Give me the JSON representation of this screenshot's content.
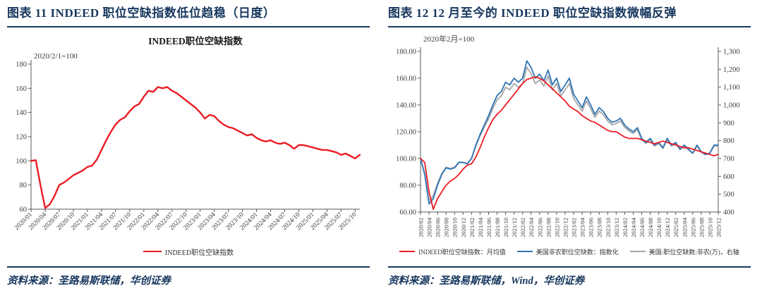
{
  "panels": [
    {
      "header": "图表 11  INDEED 职位空缺指数低位趋稳（日度）",
      "source": "资料来源：圣路易斯联储，华创证券"
    },
    {
      "header": "图表 12  12 月至今的 INDEED 职位空缺指数微幅反弹",
      "source": "资料来源：圣路易斯联储，Wind，华创证券"
    }
  ],
  "colors": {
    "navy": "#17375E",
    "red": "#EC1C24",
    "blue": "#2E75B6",
    "gray": "#A6A6A6",
    "axis": "#595959",
    "text": "#404040",
    "title": "#1a1a1a"
  },
  "chart_data": [
    {
      "type": "line",
      "title": "INDEED职位空缺指数",
      "annotation": "2020/2/1=100",
      "grid": false,
      "legend_position": "bottom",
      "ylim": [
        60,
        180
      ],
      "yticks": [
        "60",
        "80",
        "100",
        "120",
        "140",
        "160",
        "180"
      ],
      "x_tick_every": 3,
      "x_label_rotate": 45,
      "x": [
        "2020/01",
        "2020/02",
        "2020/03",
        "2020/04",
        "2020/05",
        "2020/06",
        "2020/07",
        "2020/08",
        "2020/09",
        "2020/10",
        "2020/11",
        "2020/12",
        "2021/01",
        "2021/02",
        "2021/03",
        "2021/04",
        "2021/05",
        "2021/06",
        "2021/07",
        "2021/08",
        "2021/09",
        "2021/10",
        "2021/11",
        "2021/12",
        "2022/01",
        "2022/02",
        "2022/03",
        "2022/04",
        "2022/05",
        "2022/06",
        "2022/07",
        "2022/08",
        "2022/09",
        "2022/10",
        "2022/11",
        "2022/12",
        "2023/01",
        "2023/02",
        "2023/03",
        "2023/04",
        "2023/05",
        "2023/06",
        "2023/07",
        "2023/08",
        "2023/09",
        "2023/10",
        "2023/11",
        "2023/12",
        "2024/01",
        "2024/02",
        "2024/03",
        "2024/04",
        "2024/05",
        "2024/06",
        "2024/07",
        "2024/08",
        "2024/09",
        "2024/10",
        "2024/11",
        "2024/12",
        "2025/01",
        "2025/02",
        "2025/03",
        "2025/04",
        "2025/05",
        "2025/06",
        "2025/07",
        "2025/08",
        "2025/09",
        "2025/10",
        "2025/11"
      ],
      "series": [
        {
          "name": "INDEED职位空缺指数",
          "color": "red",
          "axis": "left",
          "width": 2.4,
          "values": [
            100,
            100.5,
            80,
            61,
            64,
            71,
            80,
            82,
            85,
            88,
            90,
            92,
            95,
            96,
            101,
            109,
            117,
            124,
            130,
            134,
            136,
            141,
            145,
            147,
            153,
            158,
            157,
            161,
            160,
            161,
            158,
            156,
            153,
            150,
            147,
            144,
            140,
            135,
            138,
            137,
            133,
            130,
            128,
            127,
            125,
            123,
            121,
            122,
            119,
            117,
            116,
            117,
            115,
            114,
            115,
            113,
            110,
            113,
            113,
            112,
            111,
            110,
            109,
            109,
            108,
            107,
            105,
            106,
            104,
            102,
            105
          ]
        }
      ]
    },
    {
      "type": "line",
      "title": "",
      "annotation": "2020年2月=100",
      "grid": false,
      "legend_position": "bottom",
      "ylim": [
        60,
        180
      ],
      "yticks": [
        "60.00",
        "80.00",
        "100.00",
        "120.00",
        "140.00",
        "160.00",
        "180.00"
      ],
      "ylim_right": [
        400,
        1300
      ],
      "yticks_right": [
        "400",
        "500",
        "600",
        "700",
        "800",
        "900",
        "1,000",
        "1,100",
        "1,200",
        "1,300"
      ],
      "x_tick_every": 2,
      "x_label_rotate": 90,
      "x": [
        "2020/02",
        "2020/03",
        "2020/04",
        "2020/05",
        "2020/06",
        "2020/07",
        "2020/08",
        "2020/09",
        "2020/10",
        "2020/11",
        "2020/12",
        "2021/01",
        "2021/02",
        "2021/03",
        "2021/04",
        "2021/05",
        "2021/06",
        "2021/07",
        "2021/08",
        "2021/09",
        "2021/10",
        "2021/11",
        "2021/12",
        "2022/01",
        "2022/02",
        "2022/03",
        "2022/04",
        "2022/05",
        "2022/06",
        "2022/07",
        "2022/08",
        "2022/09",
        "2022/10",
        "2022/11",
        "2022/12",
        "2023/01",
        "2023/02",
        "2023/03",
        "2023/04",
        "2023/05",
        "2023/06",
        "2023/07",
        "2023/08",
        "2023/09",
        "2023/10",
        "2023/11",
        "2023/12",
        "2024/01",
        "2024/02",
        "2024/03",
        "2024/04",
        "2024/05",
        "2024/06",
        "2024/07",
        "2024/08",
        "2024/09",
        "2024/10",
        "2024/11",
        "2024/12",
        "2025/01",
        "2025/02",
        "2025/03",
        "2025/04",
        "2025/05",
        "2025/06",
        "2025/07",
        "2025/08",
        "2025/09",
        "2025/10",
        "2025/11",
        "2025/12"
      ],
      "series": [
        {
          "name": "INDEED职位空缺指数：月均值",
          "color": "red",
          "axis": "left",
          "width": 1.8,
          "values": [
            100,
            97,
            75,
            62,
            70,
            75,
            80,
            83,
            85,
            88,
            92,
            95,
            96,
            101,
            108,
            116,
            123,
            129,
            133,
            136,
            140,
            144,
            148,
            152,
            156,
            159,
            160,
            161,
            160,
            158,
            155,
            152,
            149,
            146,
            143,
            139,
            137,
            135,
            132,
            130,
            128,
            127,
            125,
            123,
            121,
            120,
            120,
            118,
            116,
            115,
            115,
            115,
            114,
            113,
            112,
            111,
            112,
            113,
            112,
            111,
            110,
            109,
            108,
            108,
            107,
            106,
            105,
            104,
            103,
            102,
            103
          ]
        },
        {
          "name": "美国非农职位空缺数：指数化",
          "color": "blue",
          "axis": "left",
          "width": 1.8,
          "values": [
            100,
            88,
            66,
            70,
            80,
            88,
            93,
            92,
            93,
            97,
            97,
            96,
            100,
            110,
            118,
            125,
            132,
            140,
            147,
            150,
            157,
            155,
            160,
            157,
            160,
            173,
            168,
            160,
            163,
            158,
            166,
            155,
            160,
            150,
            155,
            160,
            148,
            143,
            138,
            146,
            140,
            133,
            138,
            135,
            130,
            127,
            128,
            130,
            125,
            122,
            120,
            123,
            115,
            112,
            115,
            110,
            112,
            108,
            115,
            110,
            112,
            107,
            110,
            107,
            104,
            110,
            105,
            103,
            104,
            110,
            110
          ]
        },
        {
          "name": "美国:职位空缺数:非农(万)，右轴",
          "color": "gray",
          "axis": "right",
          "width": 1.8,
          "values": [
            700,
            616,
            462,
            490,
            560,
            616,
            651,
            644,
            651,
            679,
            679,
            672,
            700,
            770,
            826,
            875,
            924,
            980,
            1029,
            1050,
            1099,
            1085,
            1120,
            1099,
            1120,
            1211,
            1176,
            1120,
            1141,
            1106,
            1162,
            1085,
            1120,
            1050,
            1085,
            1120,
            1036,
            1001,
            966,
            1022,
            980,
            931,
            966,
            945,
            910,
            889,
            896,
            910,
            875,
            854,
            840,
            861,
            805,
            784,
            805,
            770,
            784,
            756,
            805,
            770,
            784,
            749,
            770,
            749,
            728,
            770,
            735,
            721,
            728,
            770,
            770
          ]
        }
      ]
    }
  ]
}
